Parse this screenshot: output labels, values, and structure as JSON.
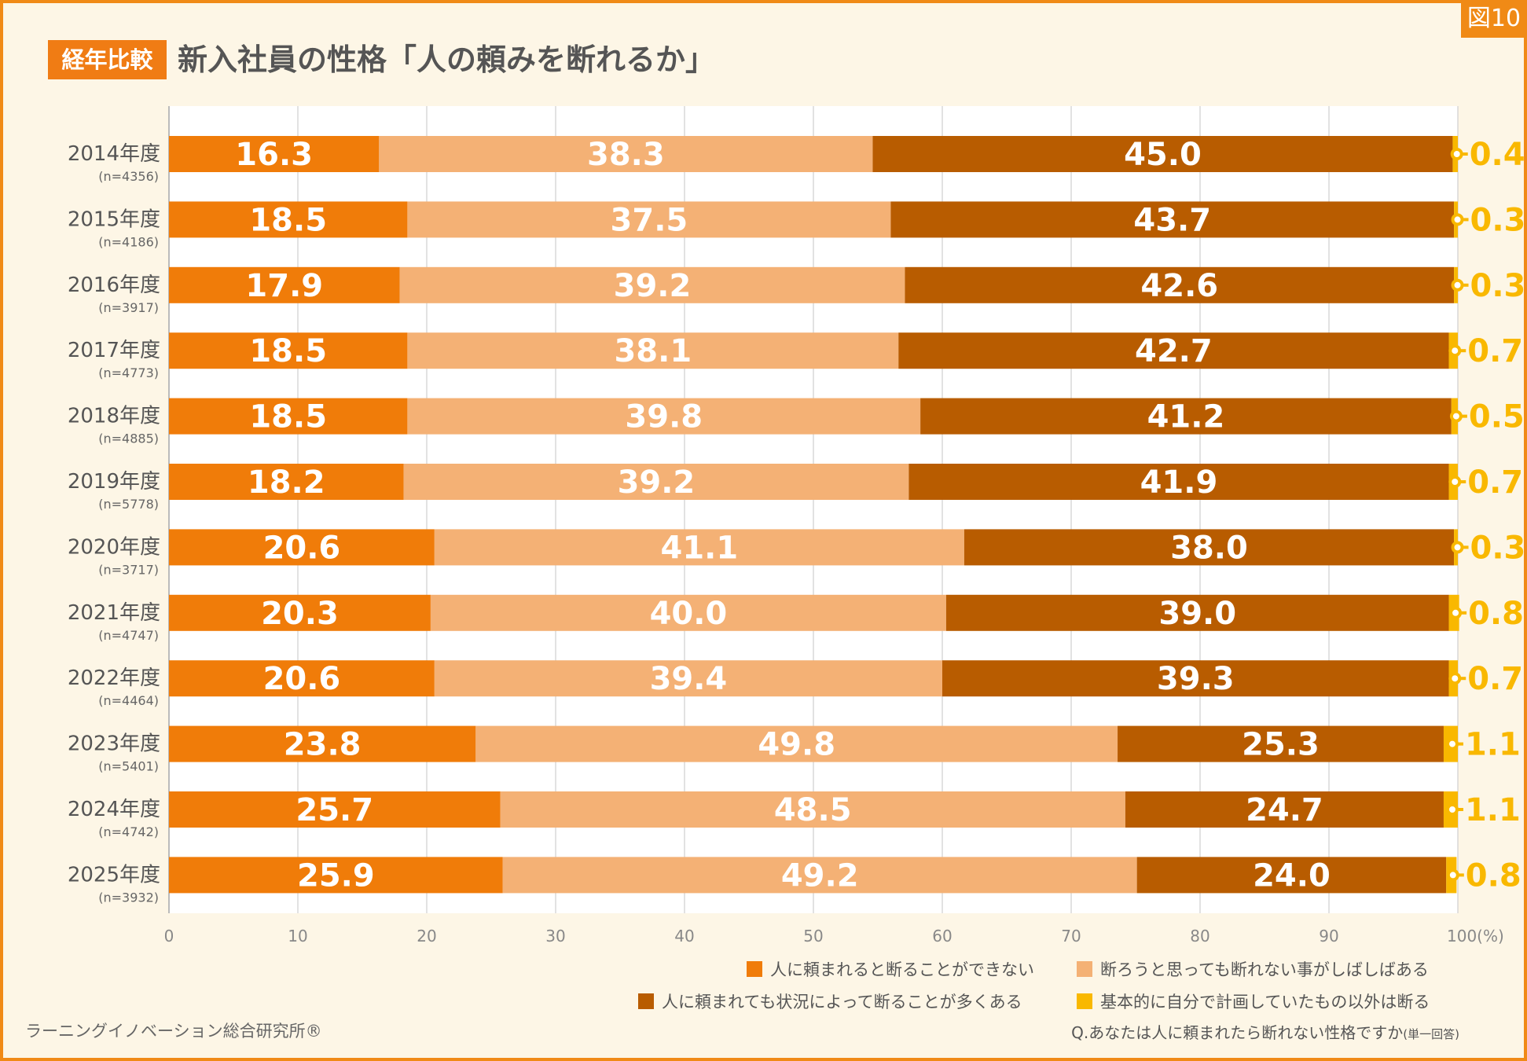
{
  "figure_tag": "図10",
  "title_badge": "経年比較",
  "title": "新入社員の性格「人の頼みを断れるか」",
  "colors": {
    "accent": "#f08a16",
    "cannot_refuse": "#f07c09",
    "often_cannot": "#f4b175",
    "depends": "#b85c00",
    "refuse_non_plan": "#f9b800",
    "background": "#fdf6e6"
  },
  "chart_data": {
    "type": "bar",
    "orientation": "horizontal",
    "stacked": true,
    "title": "新入社員の性格「人の頼みを断れるか」",
    "categories": [
      "2014年度",
      "2015年度",
      "2016年度",
      "2017年度",
      "2018年度",
      "2019年度",
      "2020年度",
      "2021年度",
      "2022年度",
      "2023年度",
      "2024年度",
      "2025年度"
    ],
    "sample_sizes": [
      "(n=4356)",
      "(n=4186)",
      "(n=3917)",
      "(n=4773)",
      "(n=4885)",
      "(n=5778)",
      "(n=3717)",
      "(n=4747)",
      "(n=4464)",
      "(n=5401)",
      "(n=4742)",
      "(n=3932)"
    ],
    "series": [
      {
        "name": "人に頼まれると断ることができない",
        "color": "#f07c09",
        "values": [
          16.3,
          18.5,
          17.9,
          18.5,
          18.5,
          18.2,
          20.6,
          20.3,
          20.6,
          23.8,
          25.7,
          25.9
        ]
      },
      {
        "name": "断ろうと思っても断れない事がしばしばある",
        "color": "#f4b175",
        "values": [
          38.3,
          37.5,
          39.2,
          38.1,
          39.8,
          39.2,
          41.1,
          40.0,
          39.4,
          49.8,
          48.5,
          49.2
        ]
      },
      {
        "name": "人に頼まれても状況によって断ることが多くある",
        "color": "#b85c00",
        "values": [
          45.0,
          43.7,
          42.6,
          42.7,
          41.2,
          41.9,
          38.0,
          39.0,
          39.3,
          25.3,
          24.7,
          24.0
        ]
      },
      {
        "name": "基本的に自分で計画していたもの以外は断る",
        "color": "#f9b800",
        "values": [
          0.4,
          0.3,
          0.3,
          0.7,
          0.5,
          0.7,
          0.3,
          0.8,
          0.7,
          1.1,
          1.1,
          0.8
        ]
      }
    ],
    "xlim": [
      0,
      100
    ],
    "xticks": [
      "0",
      "10",
      "20",
      "30",
      "40",
      "50",
      "60",
      "70",
      "80",
      "90",
      "100(%)"
    ],
    "grid": true,
    "legend_position": "bottom-right"
  },
  "footer": {
    "source": "ラーニングイノベーション総合研究所®",
    "question": "Q.あなたは人に頼まれたら断れない性格ですか",
    "question_note": "(単一回答)"
  }
}
